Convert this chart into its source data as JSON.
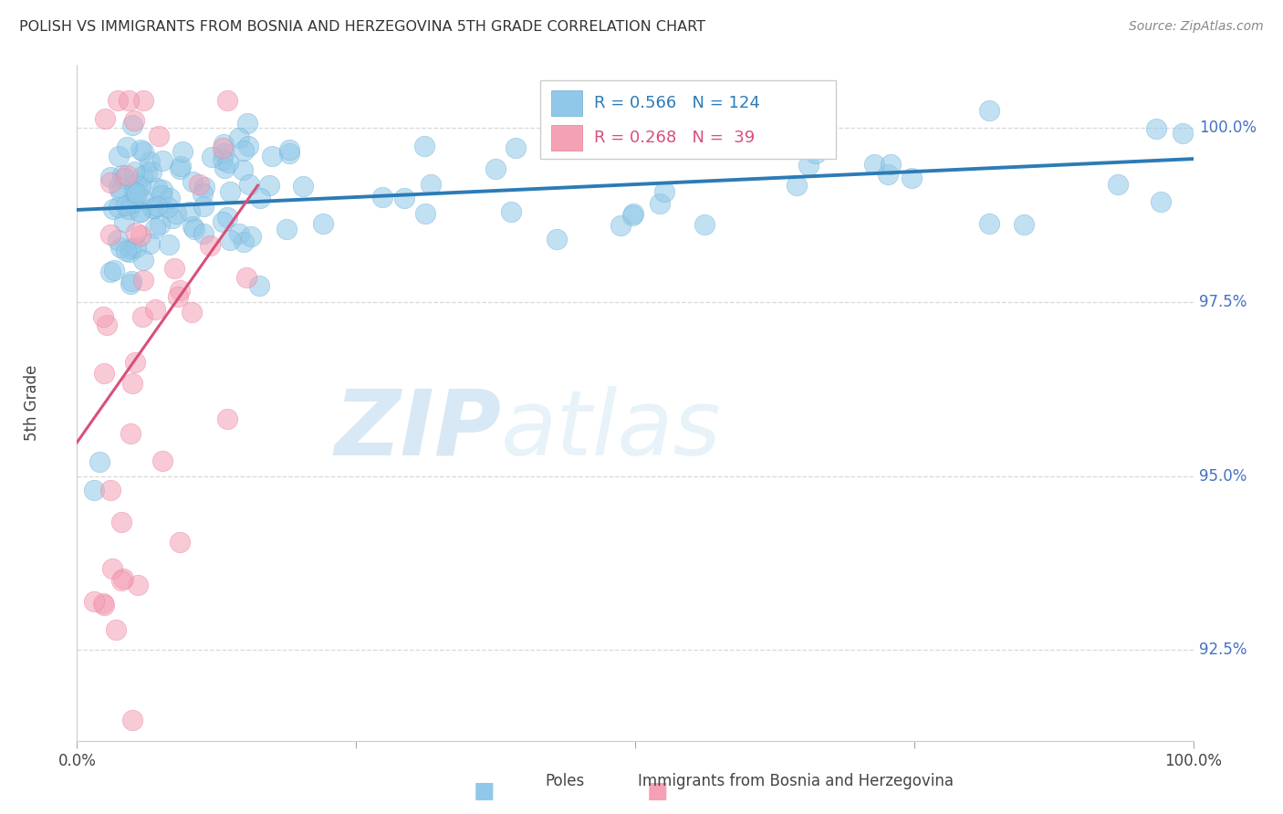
{
  "title": "POLISH VS IMMIGRANTS FROM BOSNIA AND HERZEGOVINA 5TH GRADE CORRELATION CHART",
  "source": "Source: ZipAtlas.com",
  "ylabel": "5th Grade",
  "ytick_values": [
    92.5,
    95.0,
    97.5,
    100.0
  ],
  "xlim": [
    0.0,
    100.0
  ],
  "ylim": [
    91.2,
    100.9
  ],
  "blue_R": 0.566,
  "blue_N": 124,
  "pink_R": 0.268,
  "pink_N": 39,
  "blue_color": "#8fc8e8",
  "blue_edge_color": "#6baed6",
  "blue_line_color": "#2c7bb6",
  "pink_color": "#f4a0b5",
  "pink_edge_color": "#e87a99",
  "pink_line_color": "#d94f7a",
  "legend_label_blue": "Poles",
  "legend_label_pink": "Immigrants from Bosnia and Herzegovina",
  "watermark_zip": "ZIP",
  "watermark_atlas": "atlas",
  "background_color": "#ffffff",
  "grid_color": "#d8d8d8",
  "title_color": "#333333",
  "source_color": "#888888",
  "axis_label_color": "#444444",
  "ytick_color": "#4472c4",
  "xtick_color": "#444444"
}
